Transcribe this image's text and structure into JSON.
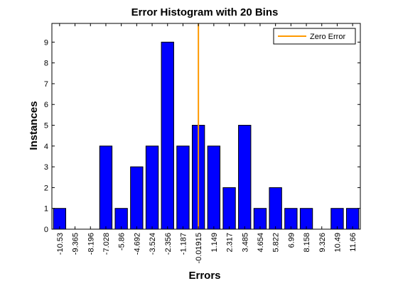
{
  "chart_data": {
    "type": "bar",
    "title": "Error Histogram with 20 Bins",
    "xlabel": "Errors",
    "ylabel": "Instances",
    "categories": [
      "-10.53",
      "-9.365",
      "-8.196",
      "-7.028",
      "-5.86",
      "-4.692",
      "-3.524",
      "-2.356",
      "-1.187",
      "-0.01915",
      "1.149",
      "2.317",
      "3.485",
      "4.654",
      "5.822",
      "6.99",
      "8.158",
      "9.326",
      "10.49",
      "11.66"
    ],
    "values": [
      1,
      0,
      0,
      4,
      1,
      3,
      4,
      9,
      4,
      5,
      4,
      2,
      5,
      1,
      2,
      1,
      1,
      0,
      1,
      1
    ],
    "ylim": [
      0,
      9.9
    ],
    "yticks": [
      0,
      1,
      2,
      3,
      4,
      5,
      6,
      7,
      8,
      9
    ],
    "reference_line": {
      "name": "Zero Error",
      "category_index": 9,
      "color": "#ff9900"
    },
    "bar_color": "#0000ff",
    "legend_position": "top-right",
    "grid": false
  }
}
